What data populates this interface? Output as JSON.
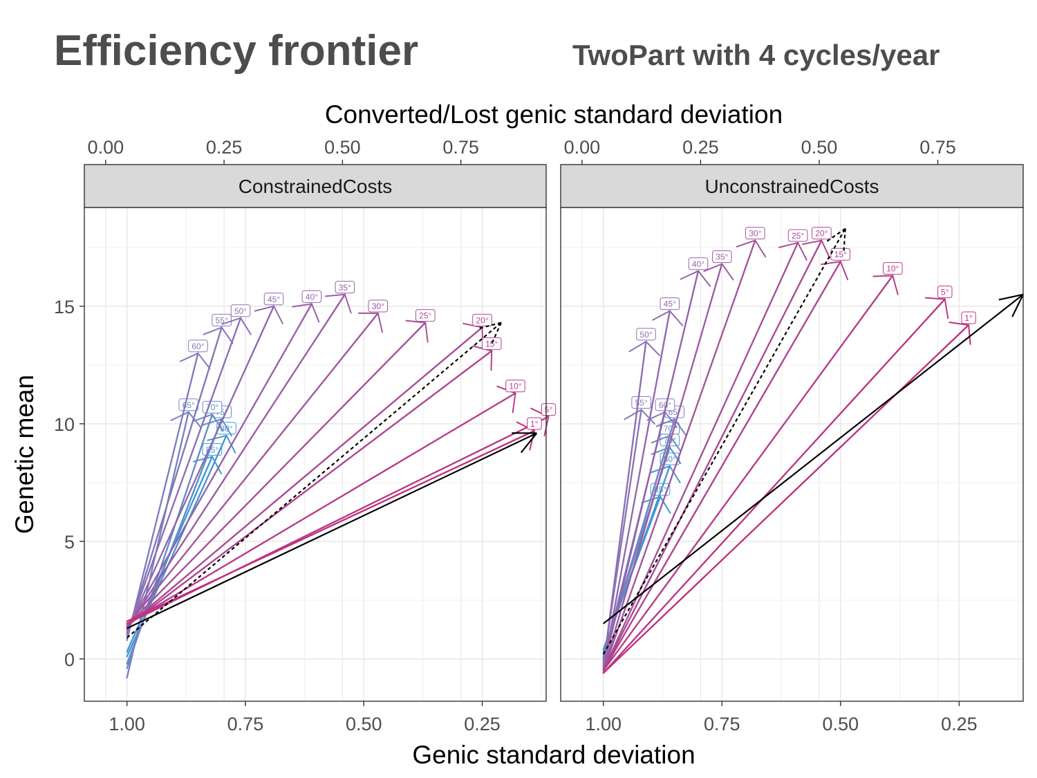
{
  "title": "Efficiency frontier",
  "subtitle": "TwoPart with 4 cycles/year",
  "chart_data": {
    "type": "line",
    "top_xlabel": "Converted/Lost genic standard deviation",
    "xlabel": "Genic standard deviation",
    "ylabel": "Genetic mean",
    "x_reversed": true,
    "xlim": [
      1.09,
      0.115
    ],
    "top_xlim": [
      -0.045,
      0.93
    ],
    "ylim": [
      -1.8,
      19.2
    ],
    "x_ticks": [
      "1.00",
      "0.75",
      "0.50",
      "0.25"
    ],
    "top_x_ticks": [
      "0.00",
      "0.25",
      "0.50",
      "0.75"
    ],
    "y_ticks": [
      "0",
      "5",
      "10",
      "15"
    ],
    "colors": {
      "blue": "#3c9ad6",
      "purple": "#7f7fbf",
      "magenta": "#c0307e",
      "reference": "#000000"
    },
    "panels": [
      {
        "name": "ConstrainedCosts",
        "series": [
          {
            "label": "85°",
            "x": [
              1.0,
              0.82
            ],
            "y": [
              0.3,
              8.6
            ]
          },
          {
            "label": "80°",
            "x": [
              1.0,
              0.79
            ],
            "y": [
              0.1,
              9.5
            ]
          },
          {
            "label": "75°",
            "x": [
              1.0,
              0.8
            ],
            "y": [
              -0.2,
              10.2
            ]
          },
          {
            "label": "70°",
            "x": [
              1.0,
              0.82
            ],
            "y": [
              -0.4,
              10.4
            ]
          },
          {
            "label": "65°",
            "x": [
              1.0,
              0.87
            ],
            "y": [
              -0.8,
              10.5
            ]
          },
          {
            "label": "60°",
            "x": [
              1.0,
              0.85
            ],
            "y": [
              0.8,
              13.0
            ]
          },
          {
            "label": "55°",
            "x": [
              1.0,
              0.8
            ],
            "y": [
              1.0,
              14.1
            ]
          },
          {
            "label": "50°",
            "x": [
              1.0,
              0.76
            ],
            "y": [
              1.1,
              14.5
            ]
          },
          {
            "label": "45°",
            "x": [
              1.0,
              0.69
            ],
            "y": [
              1.2,
              15.0
            ]
          },
          {
            "label": "40°",
            "x": [
              1.0,
              0.61
            ],
            "y": [
              1.3,
              15.1
            ]
          },
          {
            "label": "35°",
            "x": [
              1.0,
              0.54
            ],
            "y": [
              1.3,
              15.5
            ]
          },
          {
            "label": "30°",
            "x": [
              1.0,
              0.47
            ],
            "y": [
              1.4,
              14.7
            ]
          },
          {
            "label": "25°",
            "x": [
              1.0,
              0.37
            ],
            "y": [
              1.4,
              14.3
            ]
          },
          {
            "label": "20°",
            "x": [
              1.0,
              0.25
            ],
            "y": [
              1.4,
              14.1
            ]
          },
          {
            "label": "15°",
            "x": [
              1.0,
              0.23
            ],
            "y": [
              1.4,
              13.1
            ]
          },
          {
            "label": "10°",
            "x": [
              1.0,
              0.18
            ],
            "y": [
              1.5,
              11.3
            ]
          },
          {
            "label": "5°",
            "x": [
              1.0,
              0.11
            ],
            "y": [
              1.5,
              10.3
            ]
          },
          {
            "label": "1°",
            "x": [
              1.0,
              0.14
            ],
            "y": [
              1.6,
              9.7
            ]
          }
        ],
        "reference": [
          {
            "style": "solid",
            "x": [
              1.0,
              0.135
            ],
            "y": [
              1.3,
              9.6
            ]
          },
          {
            "style": "dotted",
            "x": [
              1.0,
              0.21
            ],
            "y": [
              0.9,
              14.3
            ]
          }
        ]
      },
      {
        "name": "UnconstrainedCosts",
        "series": [
          {
            "label": "85°",
            "x": [
              1.0,
              0.88
            ],
            "y": [
              0.4,
              6.9
            ]
          },
          {
            "label": "80°",
            "x": [
              1.0,
              0.86
            ],
            "y": [
              0.3,
              8.2
            ]
          },
          {
            "label": "75°",
            "x": [
              1.0,
              0.86
            ],
            "y": [
              0.2,
              9.0
            ]
          },
          {
            "label": "70°",
            "x": [
              1.0,
              0.86
            ],
            "y": [
              0.1,
              9.5
            ]
          },
          {
            "label": "65°",
            "x": [
              1.0,
              0.85
            ],
            "y": [
              0.0,
              10.2
            ]
          },
          {
            "label": "60°",
            "x": [
              1.0,
              0.87
            ],
            "y": [
              -0.1,
              10.5
            ]
          },
          {
            "label": "55°",
            "x": [
              1.0,
              0.92
            ],
            "y": [
              -0.2,
              10.6
            ]
          },
          {
            "label": "50°",
            "x": [
              1.0,
              0.91
            ],
            "y": [
              -0.3,
              13.5
            ]
          },
          {
            "label": "45°",
            "x": [
              1.0,
              0.86
            ],
            "y": [
              -0.4,
              14.8
            ]
          },
          {
            "label": "40°",
            "x": [
              1.0,
              0.8
            ],
            "y": [
              -0.4,
              16.5
            ]
          },
          {
            "label": "35°",
            "x": [
              1.0,
              0.75
            ],
            "y": [
              -0.5,
              16.8
            ]
          },
          {
            "label": "30°",
            "x": [
              1.0,
              0.68
            ],
            "y": [
              -0.5,
              17.8
            ]
          },
          {
            "label": "25°",
            "x": [
              1.0,
              0.59
            ],
            "y": [
              -0.5,
              17.7
            ]
          },
          {
            "label": "20°",
            "x": [
              1.0,
              0.54
            ],
            "y": [
              -0.5,
              17.8
            ]
          },
          {
            "label": "15°",
            "x": [
              1.0,
              0.5
            ],
            "y": [
              -0.5,
              16.9
            ]
          },
          {
            "label": "10°",
            "x": [
              1.0,
              0.39
            ],
            "y": [
              -0.5,
              16.3
            ]
          },
          {
            "label": "5°",
            "x": [
              1.0,
              0.28
            ],
            "y": [
              -0.6,
              15.3
            ]
          },
          {
            "label": "1°",
            "x": [
              1.0,
              0.23
            ],
            "y": [
              -0.6,
              14.2
            ]
          }
        ],
        "reference": [
          {
            "style": "solid",
            "x": [
              1.0,
              0.115
            ],
            "y": [
              1.5,
              15.5
            ]
          },
          {
            "style": "dotted",
            "x": [
              1.0,
              0.49
            ],
            "y": [
              0.2,
              18.3
            ]
          }
        ]
      }
    ]
  }
}
